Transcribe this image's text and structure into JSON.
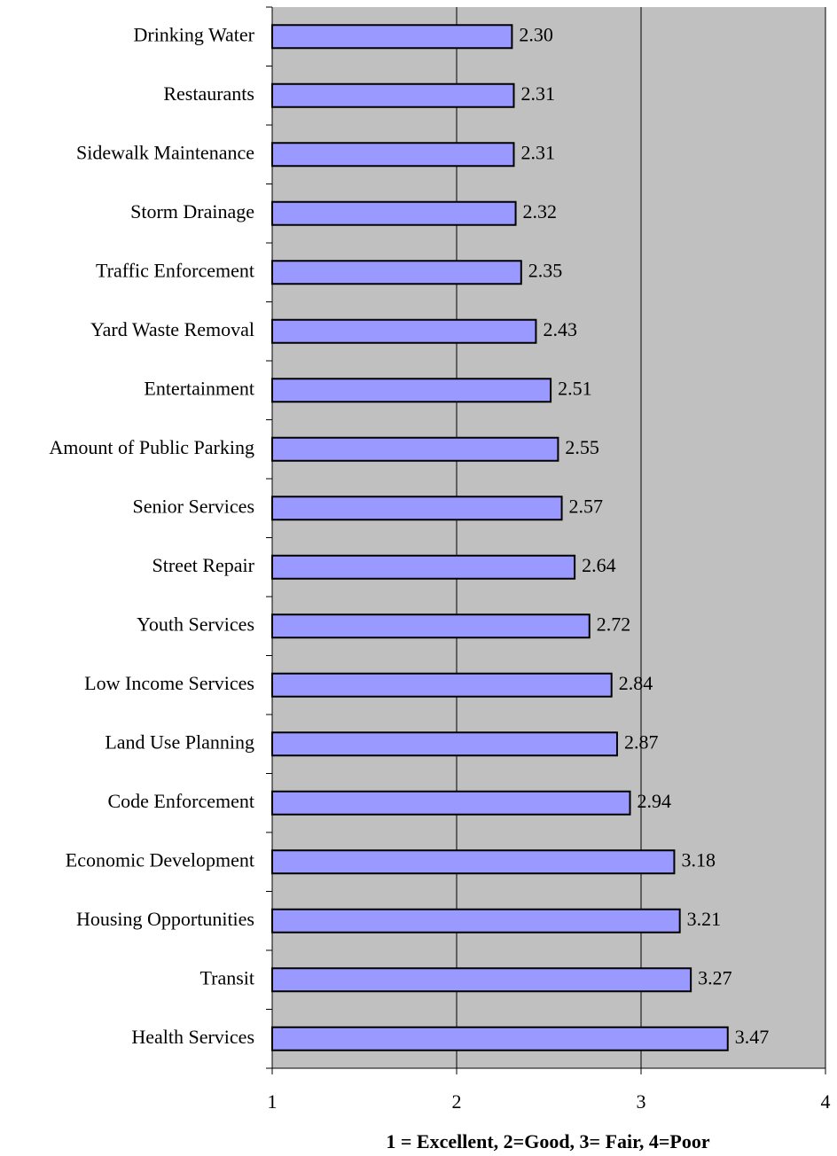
{
  "chart_data": {
    "type": "bar",
    "orientation": "horizontal",
    "x_label": "1 = Excellent, 2=Good, 3= Fair, 4=Poor",
    "categories": [
      "Drinking Water",
      "Restaurants",
      "Sidewalk Maintenance",
      "Storm Drainage",
      "Traffic Enforcement",
      "Yard Waste Removal",
      "Entertainment",
      "Amount of Public Parking",
      "Senior Services",
      "Street Repair",
      "Youth Services",
      "Low Income Services",
      "Land Use Planning",
      "Code Enforcement",
      "Economic Development",
      "Housing Opportunities",
      "Transit",
      "Health Services"
    ],
    "values": [
      2.3,
      2.31,
      2.31,
      2.32,
      2.35,
      2.43,
      2.51,
      2.55,
      2.57,
      2.64,
      2.72,
      2.84,
      2.87,
      2.94,
      3.18,
      3.21,
      3.27,
      3.47
    ],
    "value_labels": [
      "2.30",
      "2.31",
      "2.31",
      "2.32",
      "2.35",
      "2.43",
      "2.51",
      "2.55",
      "2.57",
      "2.64",
      "2.72",
      "2.84",
      "2.87",
      "2.94",
      "3.18",
      "3.21",
      "3.27",
      "3.47"
    ],
    "color": "#9999ff",
    "plot_background": "#c0c0c0",
    "xlim": [
      1,
      4
    ],
    "xticks": [
      1,
      2,
      3,
      4
    ],
    "grid": true
  }
}
